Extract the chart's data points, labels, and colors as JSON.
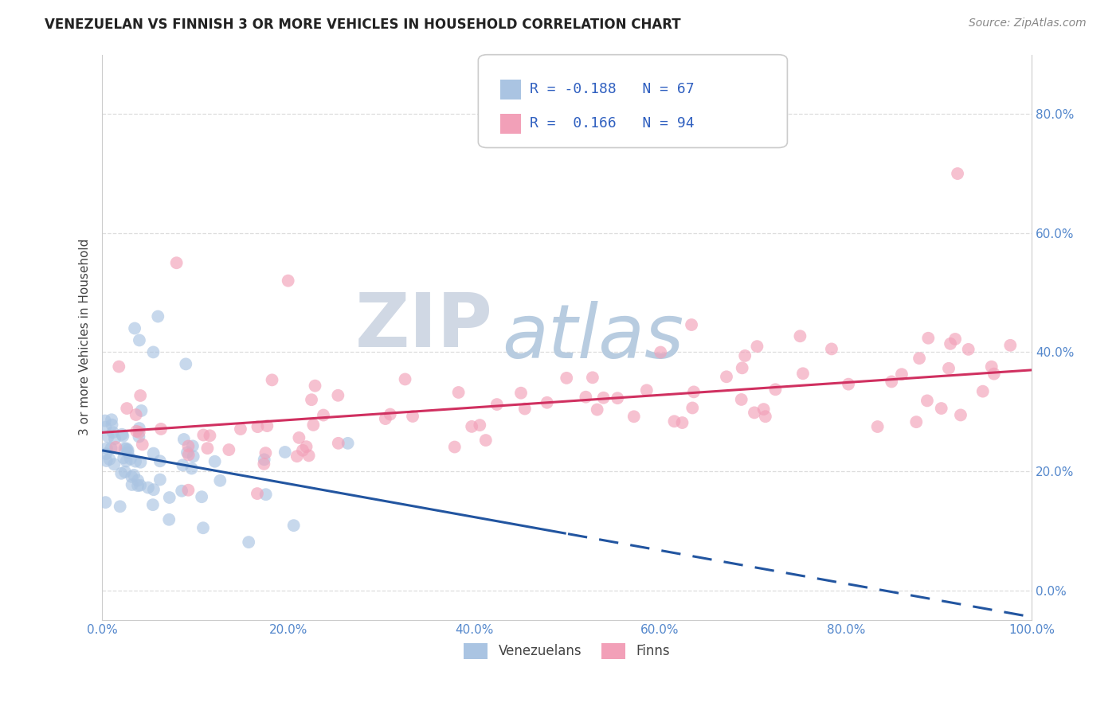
{
  "title": "VENEZUELAN VS FINNISH 3 OR MORE VEHICLES IN HOUSEHOLD CORRELATION CHART",
  "source": "Source: ZipAtlas.com",
  "ylabel": "3 or more Vehicles in Household",
  "xlim": [
    0.0,
    100.0
  ],
  "ylim": [
    -5.0,
    90.0
  ],
  "ytick_vals": [
    0,
    20,
    40,
    60,
    80
  ],
  "ytick_labels": [
    "0.0%",
    "20.0%",
    "40.0%",
    "60.0%",
    "80.0%"
  ],
  "xtick_vals": [
    0,
    20,
    40,
    60,
    80,
    100
  ],
  "xtick_labels": [
    "0.0%",
    "20.0%",
    "40.0%",
    "60.0%",
    "80.0%",
    "100.0%"
  ],
  "venezuelan_color": "#aac4e2",
  "finn_color": "#f2a0b8",
  "venezuelan_R": -0.188,
  "venezuelan_N": 67,
  "finn_R": 0.166,
  "finn_N": 94,
  "line_blue": "#2255a0",
  "line_pink": "#d03060",
  "watermark_zip": "ZIP",
  "watermark_atlas": "atlas",
  "watermark_color_zip": "#d0d8e4",
  "watermark_color_atlas": "#b8cce0",
  "legend_label_venezuelans": "Venezuelans",
  "legend_label_finns": "Finns",
  "legend_text_color": "#3060c0",
  "tick_color": "#5588cc",
  "title_color": "#222222",
  "source_color": "#888888",
  "ylabel_color": "#444444",
  "grid_color": "#dddddd",
  "spine_color": "#cccccc",
  "blue_solid_end": 50.0,
  "pink_line_start": 0.0,
  "pink_line_end": 100.0,
  "blue_line_y0": 23.5,
  "blue_line_slope": -0.28,
  "pink_line_y0": 26.5,
  "pink_line_slope": 0.105
}
